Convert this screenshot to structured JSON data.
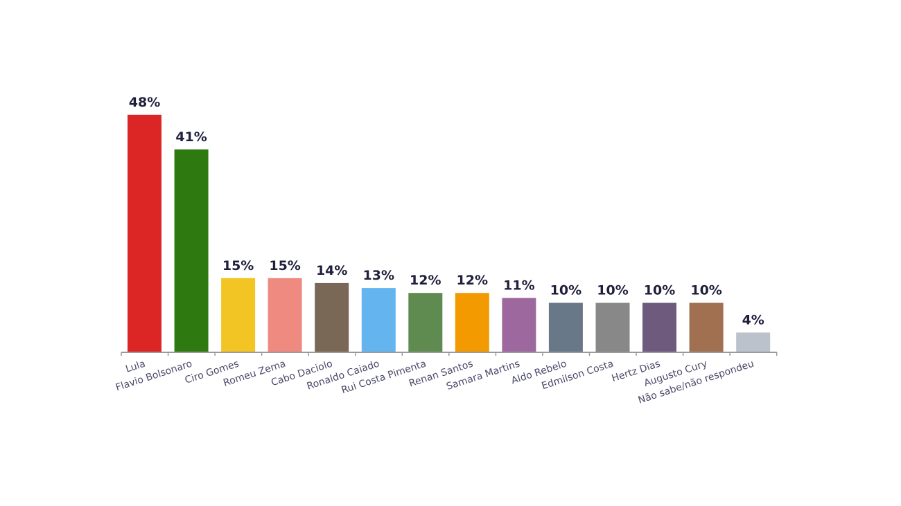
{
  "chart_data": {
    "type": "bar",
    "categories": [
      "Lula",
      "Flavio Bolsonaro",
      "Ciro Gomes",
      "Romeu Zema",
      "Cabo Daciolo",
      "Ronaldo Caiado",
      "Rui Costa Pimenta",
      "Renan Santos",
      "Samara Martins",
      "Aldo Rebelo",
      "Edmilson Costa",
      "Hertz Dias",
      "Augusto Cury",
      "Não sabe/não respondeu"
    ],
    "values": [
      48,
      41,
      15,
      15,
      14,
      13,
      12,
      12,
      11,
      10,
      10,
      10,
      10,
      4
    ],
    "value_labels": [
      "48%",
      "41%",
      "15%",
      "15%",
      "14%",
      "13%",
      "12%",
      "12%",
      "11%",
      "10%",
      "10%",
      "10%",
      "10%",
      "4%"
    ],
    "colors": [
      "#dc2626",
      "#2e7a10",
      "#f2c424",
      "#ef8a80",
      "#7a6856",
      "#64b4f0",
      "#5f8a50",
      "#f29a00",
      "#9c689e",
      "#687888",
      "#888888",
      "#6e5a7c",
      "#a07050",
      "#bcc2cc"
    ],
    "title": "",
    "xlabel": "",
    "ylabel": "",
    "ylim": [
      0,
      48
    ],
    "grid": false,
    "legend": "none"
  }
}
